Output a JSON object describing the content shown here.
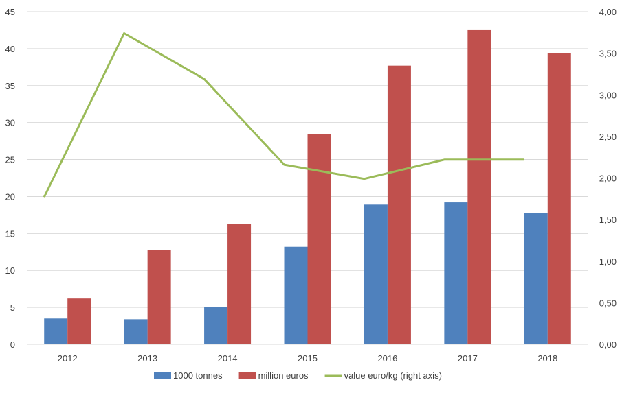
{
  "chart_data": {
    "type": "bar",
    "categories": [
      "2012",
      "2013",
      "2014",
      "2015",
      "2016",
      "2017",
      "2018"
    ],
    "series": [
      {
        "name": "1000 tonnes",
        "type": "bar",
        "axis": "left",
        "color": "#4F81BD",
        "values": [
          3.5,
          3.4,
          5.1,
          13.2,
          18.9,
          19.2,
          17.8
        ]
      },
      {
        "name": "million euros",
        "type": "bar",
        "axis": "left",
        "color": "#C0504D",
        "values": [
          6.2,
          12.8,
          16.3,
          28.4,
          37.7,
          42.5,
          39.4
        ]
      },
      {
        "name": "value euro/kg (right axis)",
        "type": "line",
        "axis": "right",
        "color": "#9BBB59",
        "values": [
          1.77,
          3.74,
          3.19,
          2.16,
          1.99,
          2.22,
          2.22
        ]
      }
    ],
    "y_left": {
      "min": 0,
      "max": 45,
      "ticks": [
        "0",
        "5",
        "10",
        "15",
        "20",
        "25",
        "30",
        "35",
        "40",
        "45"
      ]
    },
    "y_right": {
      "min": 0,
      "max": 4,
      "ticks": [
        "0,00",
        "0,50",
        "1,00",
        "1,50",
        "2,00",
        "2,50",
        "3,00",
        "3,50",
        "4,00"
      ]
    },
    "grid": true,
    "legend_position": "bottom"
  }
}
